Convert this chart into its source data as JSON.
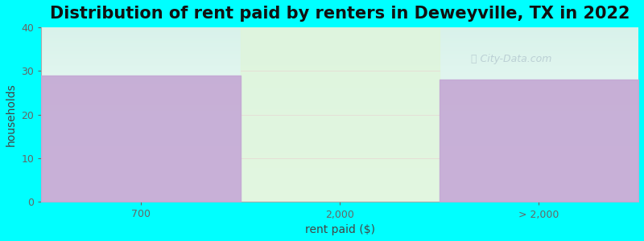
{
  "title": "Distribution of rent paid by renters in Deweyville, TX in 2022",
  "xlabel": "rent paid ($)",
  "ylabel": "households",
  "background_color": "#00FFFF",
  "bar_categories": [
    "700",
    "2,000",
    "> 2,000"
  ],
  "bar_values": [
    29,
    0,
    28
  ],
  "bar_color": "#C4A8D4",
  "ylim": [
    0,
    40
  ],
  "yticks": [
    0,
    10,
    20,
    30,
    40
  ],
  "watermark": "City-Data.com",
  "title_fontsize": 15,
  "axis_label_fontsize": 10,
  "tick_fontsize": 9,
  "middle_fill_color": "#dff5dc",
  "plot_bg_top": "#e8f5f0",
  "plot_bg_bottom": "#f5faf8"
}
